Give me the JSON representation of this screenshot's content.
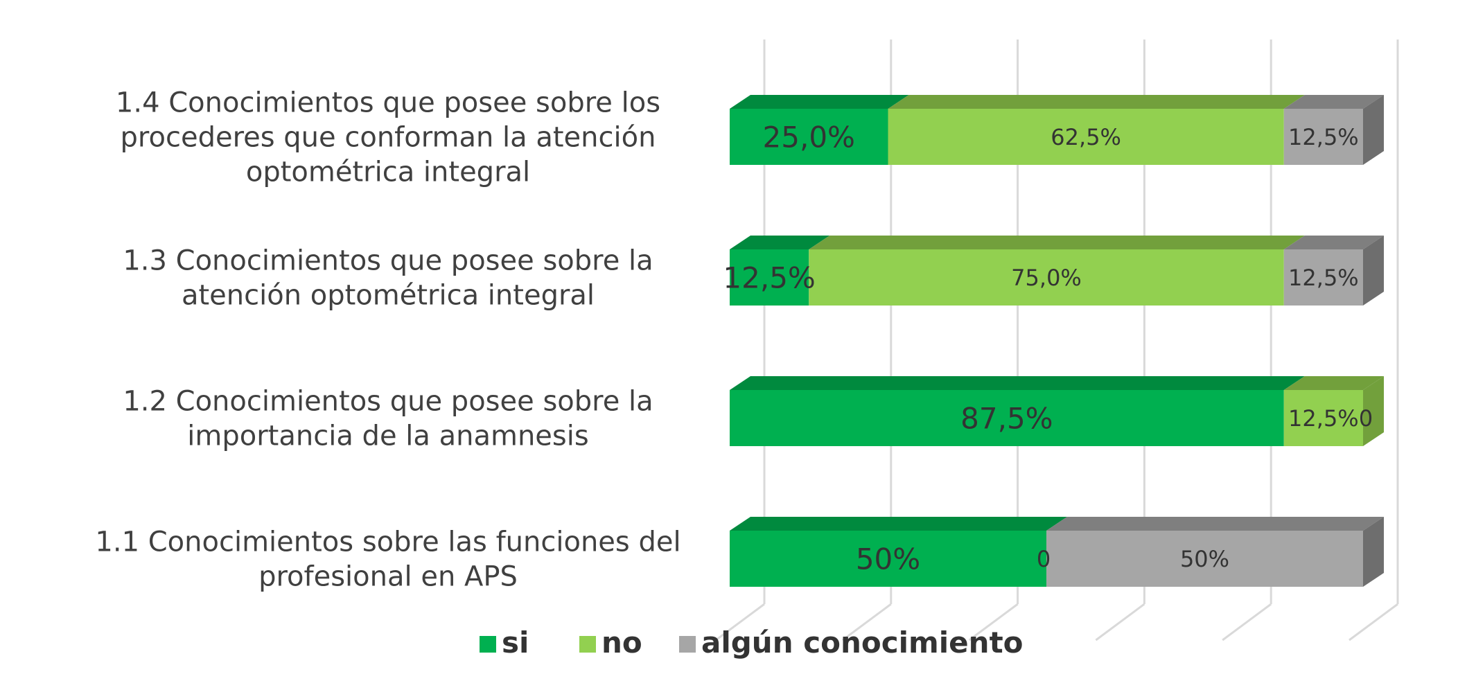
{
  "chart_data": {
    "type": "bar",
    "orientation": "horizontal",
    "stacked": "100%",
    "style": "3d",
    "title": "",
    "xlabel": "",
    "ylabel": "",
    "xlim": [
      0,
      100
    ],
    "grid": true,
    "legend_position": "bottom",
    "categories": [
      "1.4  Conocimientos que posee sobre los procederes que conforman la atención optométrica integral",
      "1.3  Conocimientos que posee sobre la atención optométrica integral",
      "1.2  Conocimientos que posee sobre la importancia de la anamnesis",
      "1.1  Conocimientos sobre las funciones del profesional en APS"
    ],
    "category_lines": [
      [
        "1.4  Conocimientos que posee sobre los",
        "procederes que conforman la atención",
        "optométrica integral"
      ],
      [
        "1.3  Conocimientos que posee sobre la",
        "atención optométrica integral"
      ],
      [
        "1.2  Conocimientos que posee sobre la",
        "importancia de la anamnesis"
      ],
      [
        "1.1  Conocimientos sobre las funciones del",
        "profesional en APS"
      ]
    ],
    "series": [
      {
        "name": "si",
        "color": "#00B050",
        "top_color": "#008A3E",
        "values": [
          25,
          12.5,
          87.5,
          50
        ],
        "labels": [
          "25,0%",
          "12,5%",
          "87,5%",
          "50%"
        ]
      },
      {
        "name": "no",
        "color": "#92D050",
        "top_color": "#72A03C",
        "values": [
          62.5,
          75,
          12.5,
          0
        ],
        "labels": [
          "62,5%",
          "75,0%",
          "12,5%",
          "0"
        ]
      },
      {
        "name": "algún conocimiento",
        "color": "#A6A6A6",
        "top_color": "#7F7F7F",
        "side_color": "#6E6E6E",
        "values": [
          12.5,
          12.5,
          0,
          50
        ],
        "labels": [
          "12,5%",
          "12,5%",
          "0",
          "50%"
        ]
      }
    ]
  }
}
